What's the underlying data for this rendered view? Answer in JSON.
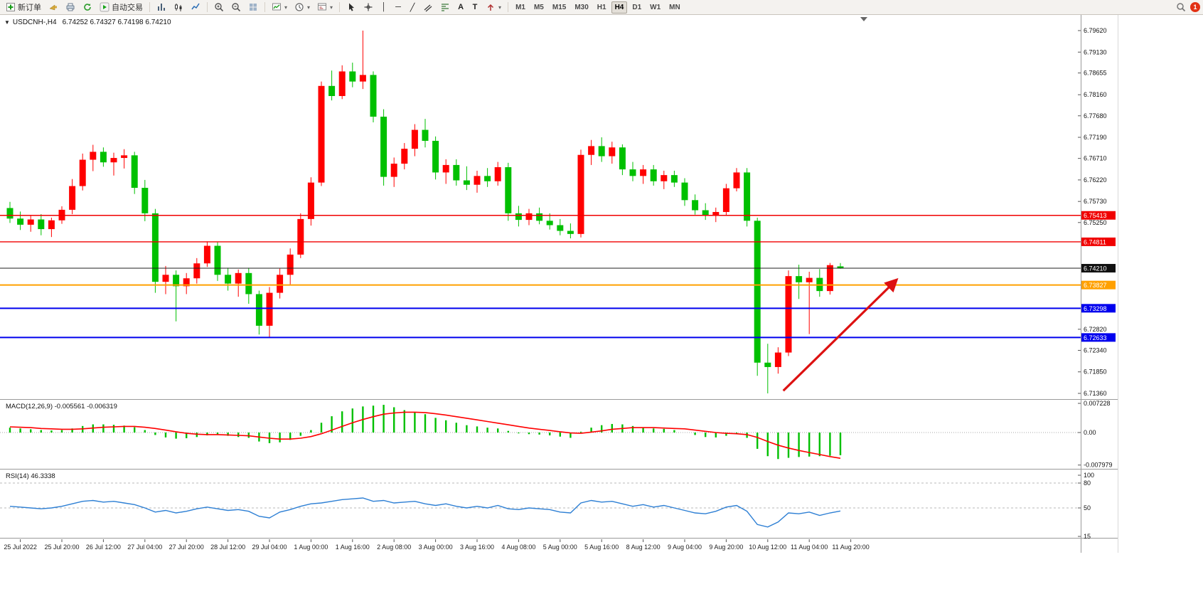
{
  "toolbar": {
    "active_timeframe": "H4",
    "items": [
      {
        "name": "new-order-button",
        "icon": "order",
        "label": "新订单"
      },
      {
        "name": "megaphone-icon",
        "icon": "megaphone"
      },
      {
        "name": "chart-print-icon",
        "icon": "printer"
      },
      {
        "name": "refresh-icon",
        "icon": "refresh"
      },
      {
        "name": "autotrade-button",
        "icon": "play",
        "label": "自动交易"
      },
      {
        "sep": true
      },
      {
        "name": "bar-chart-icon",
        "icon": "bars"
      },
      {
        "name": "candlestick-chart-icon",
        "icon": "candles"
      },
      {
        "name": "line-chart-icon",
        "icon": "linechart"
      },
      {
        "sep": true
      },
      {
        "name": "zoom-in-icon",
        "icon": "zoomin"
      },
      {
        "name": "zoom-out-icon",
        "icon": "zoomout"
      },
      {
        "name": "tile-windows-icon",
        "icon": "grid"
      },
      {
        "sep": true
      },
      {
        "name": "indicators-icon",
        "icon": "indicator",
        "dropdown": true
      },
      {
        "name": "periods-icon",
        "icon": "clock",
        "dropdown": true
      },
      {
        "name": "templates-icon",
        "icon": "template",
        "dropdown": true
      },
      {
        "sep": true
      },
      {
        "name": "cursor-icon",
        "icon": "cursor"
      },
      {
        "name": "crosshair-icon",
        "icon": "crosshair"
      },
      {
        "name": "vertical-line-icon",
        "glyph": "│"
      },
      {
        "name": "horizontal-line-icon",
        "glyph": "─"
      },
      {
        "name": "trendline-icon",
        "glyph": "╱"
      },
      {
        "name": "equidistant-channel-icon",
        "icon": "channel"
      },
      {
        "name": "fibonacci-icon",
        "icon": "fibo"
      },
      {
        "name": "text-icon",
        "glyph": "A"
      },
      {
        "name": "label-icon",
        "glyph": "T"
      },
      {
        "name": "arrows-icon",
        "icon": "arrowsym",
        "dropdown": true
      },
      {
        "sep": true
      },
      {
        "name": "timeframe-m1",
        "label": "M1",
        "tf": true
      },
      {
        "name": "timeframe-m5",
        "label": "M5",
        "tf": true
      },
      {
        "name": "timeframe-m15",
        "label": "M15",
        "tf": true
      },
      {
        "name": "timeframe-m30",
        "label": "M30",
        "tf": true
      },
      {
        "name": "timeframe-h1",
        "label": "H1",
        "tf": true
      },
      {
        "name": "timeframe-h4",
        "label": "H4",
        "tf": true
      },
      {
        "name": "timeframe-d1",
        "label": "D1",
        "tf": true
      },
      {
        "name": "timeframe-w1",
        "label": "W1",
        "tf": true
      },
      {
        "name": "timeframe-mn",
        "label": "MN",
        "tf": true
      }
    ],
    "right_items": [
      {
        "name": "search-icon",
        "icon": "search"
      },
      {
        "name": "notification-badge",
        "badge": "1"
      }
    ]
  },
  "chart": {
    "collapse_glyph": "▼",
    "title": "USDCNH-,H4",
    "ohlc": "6.74252 6.74327 6.74198 6.74210"
  },
  "indicators": {
    "macd_label": "MACD(12,26,9)",
    "macd_values": "-0.005561 -0.006319",
    "rsi_label": "RSI(14)",
    "rsi_value": "46.3338"
  },
  "price_scale": {
    "labels": [
      {
        "text": "6.79620",
        "value": 6.7962
      },
      {
        "text": "6.79130",
        "value": 6.7913
      },
      {
        "text": "6.78655",
        "value": 6.78655
      },
      {
        "text": "6.78160",
        "value": 6.7816
      },
      {
        "text": "6.77680",
        "value": 6.7768
      },
      {
        "text": "6.77190",
        "value": 6.7719
      },
      {
        "text": "6.76710",
        "value": 6.7671
      },
      {
        "text": "6.76220",
        "value": 6.7622
      },
      {
        "text": "6.75730",
        "value": 6.7573
      },
      {
        "text": "6.75250",
        "value": 6.7525
      },
      {
        "text": "6.72820",
        "value": 6.7282
      },
      {
        "text": "6.72340",
        "value": 6.7234
      },
      {
        "text": "6.71850",
        "value": 6.7185
      },
      {
        "text": "6.71360",
        "value": 6.7136
      }
    ]
  },
  "hlines": [
    {
      "label": "6.75413",
      "value": 6.75413,
      "color": "#f00000",
      "width": 1.4
    },
    {
      "label": "6.74811",
      "value": 6.74811,
      "color": "#f00000",
      "width": 1.4
    },
    {
      "label": "6.73827",
      "value": 6.73827,
      "color": "#ffa000",
      "width": 2
    },
    {
      "label": "6.73298",
      "value": 6.73298,
      "color": "#0000ee",
      "width": 2
    },
    {
      "label": "6.72633",
      "value": 6.72633,
      "color": "#0000ee",
      "width": 2
    }
  ],
  "current_price": {
    "label": "6.74210",
    "value": 6.7421,
    "color": "#111111"
  },
  "macd_scale": [
    {
      "text": "0.007228",
      "value": 0.007228
    },
    {
      "text": "0.00",
      "value": 0
    },
    {
      "text": "-0.007979",
      "value": -0.007979
    }
  ],
  "rsi_scale": [
    {
      "text": "100",
      "value": 100
    },
    {
      "text": "80",
      "value": 80
    },
    {
      "text": "50",
      "value": 50
    },
    {
      "text": "15",
      "value": 15
    }
  ],
  "rsi_levels": [
    80,
    50
  ],
  "time_axis": [
    {
      "text": "25 Jul 2022",
      "idx": 1
    },
    {
      "text": "25 Jul 20:00",
      "idx": 5
    },
    {
      "text": "26 Jul 12:00",
      "idx": 9
    },
    {
      "text": "27 Jul 04:00",
      "idx": 13
    },
    {
      "text": "27 Jul 20:00",
      "idx": 17
    },
    {
      "text": "28 Jul 12:00",
      "idx": 21
    },
    {
      "text": "29 Jul 04:00",
      "idx": 25
    },
    {
      "text": "1 Aug 00:00",
      "idx": 29
    },
    {
      "text": "1 Aug 16:00",
      "idx": 33
    },
    {
      "text": "2 Aug 08:00",
      "idx": 37
    },
    {
      "text": "3 Aug 00:00",
      "idx": 41
    },
    {
      "text": "3 Aug 16:00",
      "idx": 45
    },
    {
      "text": "4 Aug 08:00",
      "idx": 49
    },
    {
      "text": "5 Aug 00:00",
      "idx": 53
    },
    {
      "text": "5 Aug 16:00",
      "idx": 57
    },
    {
      "text": "8 Aug 12:00",
      "idx": 61
    },
    {
      "text": "9 Aug 04:00",
      "idx": 65
    },
    {
      "text": "9 Aug 20:00",
      "idx": 69
    },
    {
      "text": "10 Aug 12:00",
      "idx": 73
    },
    {
      "text": "11 Aug 04:00",
      "idx": 77
    },
    {
      "text": "11 Aug 20:00",
      "idx": 81
    }
  ],
  "annotations": {
    "arrow": {
      "from": {
        "bar": 74.5,
        "price": 6.7142
      },
      "to": {
        "bar": 85.3,
        "price": 6.7392
      },
      "color": "#dd1111",
      "width": 3.2
    }
  },
  "chart_data": {
    "type": "candlestick",
    "symbol": "USDCNH-",
    "timeframe": "H4",
    "title": "USDCNH- H4 with MACD(12,26,9) and RSI(14)",
    "price_range": [
      6.7136,
      6.7962
    ],
    "up_color": "#ff0000",
    "down_color": "#00c000",
    "candles": [
      [
        6.7558,
        6.7572,
        6.7524,
        6.7534
      ],
      [
        6.7534,
        6.755,
        6.7508,
        6.752
      ],
      [
        6.752,
        6.7542,
        6.7504,
        6.7532
      ],
      [
        6.7532,
        6.7544,
        6.7496,
        6.751
      ],
      [
        6.751,
        6.7536,
        6.7492,
        6.753
      ],
      [
        6.753,
        6.7562,
        6.7522,
        6.7554
      ],
      [
        6.7554,
        6.7624,
        6.7544,
        6.7608
      ],
      [
        6.7608,
        6.7682,
        6.7598,
        6.7668
      ],
      [
        6.7668,
        6.7702,
        6.7642,
        6.7686
      ],
      [
        6.7686,
        6.7696,
        6.7652,
        6.7662
      ],
      [
        6.7662,
        6.7684,
        6.7632,
        6.7672
      ],
      [
        6.7672,
        6.7692,
        6.7648,
        6.7678
      ],
      [
        6.7678,
        6.7686,
        6.759,
        6.7604
      ],
      [
        6.7604,
        6.7622,
        6.7528,
        6.7546
      ],
      [
        6.7546,
        6.7556,
        6.7365,
        6.739
      ],
      [
        6.739,
        6.7426,
        6.7362,
        6.7406
      ],
      [
        6.7406,
        6.7416,
        6.73,
        6.738
      ],
      [
        6.738,
        6.741,
        6.7362,
        6.7398
      ],
      [
        6.7398,
        6.7444,
        6.7386,
        6.7432
      ],
      [
        6.7432,
        6.7482,
        6.7424,
        6.7472
      ],
      [
        6.7472,
        6.748,
        6.7392,
        6.7406
      ],
      [
        6.7406,
        6.7422,
        6.737,
        6.7386
      ],
      [
        6.7386,
        6.7418,
        6.7356,
        6.741
      ],
      [
        6.741,
        6.7422,
        6.734,
        6.7362
      ],
      [
        6.7362,
        6.737,
        6.727,
        6.729
      ],
      [
        6.729,
        6.7378,
        6.7264,
        6.7365
      ],
      [
        6.7365,
        6.742,
        6.7352,
        6.7406
      ],
      [
        6.7406,
        6.7466,
        6.7382,
        6.7452
      ],
      [
        6.7452,
        6.7546,
        6.7444,
        6.7533
      ],
      [
        6.7533,
        6.7628,
        6.7518,
        6.7616
      ],
      [
        6.7616,
        6.7846,
        6.7608,
        6.7836
      ],
      [
        6.7836,
        6.7871,
        6.7803,
        6.7813
      ],
      [
        6.7813,
        6.7883,
        6.7806,
        6.7869
      ],
      [
        6.7869,
        6.7889,
        6.7833,
        6.7846
      ],
      [
        6.7846,
        6.7962,
        6.7829,
        6.7861
      ],
      [
        6.7861,
        6.7869,
        6.7753,
        6.7766
      ],
      [
        6.7766,
        6.7783,
        6.7609,
        6.7629
      ],
      [
        6.7629,
        6.7673,
        6.7606,
        6.7659
      ],
      [
        6.7659,
        6.7706,
        6.7646,
        6.7693
      ],
      [
        6.7693,
        6.7749,
        6.7676,
        6.7736
      ],
      [
        6.7736,
        6.7761,
        6.7696,
        6.7711
      ],
      [
        6.7711,
        6.7721,
        6.7623,
        6.7639
      ],
      [
        6.7639,
        6.7669,
        6.7613,
        6.7656
      ],
      [
        6.7656,
        6.7669,
        6.7609,
        6.7621
      ],
      [
        6.7621,
        6.7653,
        6.7599,
        6.7611
      ],
      [
        6.7611,
        6.7643,
        6.7593,
        6.7631
      ],
      [
        6.7631,
        6.7649,
        6.7606,
        6.7619
      ],
      [
        6.7619,
        6.7663,
        6.7609,
        6.7651
      ],
      [
        6.7651,
        6.7661,
        6.7529,
        6.7546
      ],
      [
        6.7546,
        6.7563,
        6.7516,
        6.7531
      ],
      [
        6.7531,
        6.7556,
        6.7519,
        6.7546
      ],
      [
        6.7546,
        6.7559,
        6.7521,
        6.7529
      ],
      [
        6.7529,
        6.7546,
        6.7509,
        6.7519
      ],
      [
        6.7519,
        6.7533,
        6.7496,
        6.7506
      ],
      [
        6.7506,
        6.7523,
        6.7489,
        6.7499
      ],
      [
        6.7499,
        6.7691,
        6.7491,
        6.7679
      ],
      [
        6.7679,
        6.7713,
        6.7656,
        6.7699
      ],
      [
        6.7699,
        6.7719,
        6.7663,
        6.7676
      ],
      [
        6.7676,
        6.7709,
        6.7659,
        6.7696
      ],
      [
        6.7696,
        6.7703,
        6.7633,
        6.7646
      ],
      [
        6.7646,
        6.7663,
        6.7619,
        6.7631
      ],
      [
        6.7631,
        6.7656,
        6.7613,
        6.7646
      ],
      [
        6.7646,
        6.7656,
        6.7609,
        6.7619
      ],
      [
        6.7619,
        6.7643,
        6.7601,
        6.7633
      ],
      [
        6.7633,
        6.7643,
        6.7606,
        6.7616
      ],
      [
        6.7616,
        6.7626,
        6.7563,
        6.7576
      ],
      [
        6.7576,
        6.7589,
        6.7543,
        6.7553
      ],
      [
        6.7553,
        6.7569,
        6.7531,
        6.7541
      ],
      [
        6.7541,
        6.7559,
        6.7526,
        6.7549
      ],
      [
        6.7549,
        6.7613,
        6.7541,
        6.7603
      ],
      [
        6.7603,
        6.7649,
        6.7596,
        6.7639
      ],
      [
        6.7639,
        6.7649,
        6.7516,
        6.7529
      ],
      [
        6.7529,
        6.7536,
        6.7176,
        6.7206
      ],
      [
        6.7206,
        6.7249,
        6.7136,
        6.7196
      ],
      [
        6.7196,
        6.7241,
        6.7181,
        6.7229
      ],
      [
        6.7229,
        6.7416,
        6.7221,
        6.7403
      ],
      [
        6.7403,
        6.7429,
        6.7351,
        6.7389
      ],
      [
        6.7389,
        6.7413,
        6.7271,
        6.7399
      ],
      [
        6.7399,
        6.7419,
        6.7356,
        6.7369
      ],
      [
        6.7369,
        6.7433,
        6.7361,
        6.7428
      ],
      [
        6.74252,
        6.74327,
        6.74198,
        6.7421
      ]
    ],
    "macd": {
      "histogram": [
        0.0012,
        0.001,
        0.0008,
        0.0006,
        0.0005,
        0.0006,
        0.001,
        0.0016,
        0.002,
        0.002,
        0.0019,
        0.0017,
        0.0013,
        0.0006,
        -0.0006,
        -0.0012,
        -0.0015,
        -0.0014,
        -0.0011,
        -0.0007,
        -0.0005,
        -0.0008,
        -0.0011,
        -0.0013,
        -0.0022,
        -0.0026,
        -0.0024,
        -0.0018,
        -0.0008,
        0.0006,
        0.0024,
        0.004,
        0.0052,
        0.0059,
        0.0064,
        0.0066,
        0.0068,
        0.0062,
        0.0055,
        0.005,
        0.0045,
        0.0036,
        0.003,
        0.0024,
        0.0018,
        0.0015,
        0.0012,
        0.001,
        0.0004,
        -0.0002,
        -0.0004,
        -0.0005,
        -0.0007,
        -0.001,
        -0.0013,
        0.0002,
        0.0012,
        0.0018,
        0.0021,
        0.002,
        0.0016,
        0.0013,
        0.001,
        0.0009,
        0.0006,
        0.0,
        -0.0006,
        -0.0011,
        -0.0012,
        -0.0008,
        -0.0003,
        -0.0013,
        -0.004,
        -0.0058,
        -0.0065,
        -0.0062,
        -0.006,
        -0.0059,
        -0.0058,
        -0.0057,
        -0.005561
      ],
      "signal": [
        0.0014,
        0.0013,
        0.0012,
        0.001,
        0.0009,
        0.0008,
        0.0008,
        0.0009,
        0.0011,
        0.0013,
        0.0014,
        0.0015,
        0.0015,
        0.0013,
        0.001,
        0.0006,
        0.0002,
        -0.0002,
        -0.0004,
        -0.0005,
        -0.0005,
        -0.0006,
        -0.0007,
        -0.0008,
        -0.0011,
        -0.0014,
        -0.0016,
        -0.0016,
        -0.0014,
        -0.001,
        -0.0003,
        0.0006,
        0.0015,
        0.0024,
        0.0032,
        0.0039,
        0.0045,
        0.0048,
        0.005,
        0.005,
        0.0049,
        0.0046,
        0.0043,
        0.0039,
        0.0035,
        0.0031,
        0.0027,
        0.0023,
        0.0019,
        0.0015,
        0.0011,
        0.0008,
        0.0005,
        0.0002,
        -0.0001,
        -0.0002,
        0.0001,
        0.0004,
        0.0008,
        0.001,
        0.0012,
        0.0012,
        0.0012,
        0.0011,
        0.001,
        0.0009,
        0.0006,
        0.0003,
        0.0,
        -0.0002,
        -0.0003,
        -0.0005,
        -0.0012,
        -0.0022,
        -0.0031,
        -0.0038,
        -0.0044,
        -0.0049,
        -0.0054,
        -0.0059,
        -0.006319
      ],
      "hist_color": "#00c000",
      "signal_color": "#ff0000",
      "range": [
        -0.007979,
        0.007228
      ]
    },
    "rsi": {
      "values": [
        52,
        51,
        50,
        49,
        50,
        52,
        55,
        58,
        59,
        57,
        58,
        56,
        54,
        50,
        45,
        47,
        44,
        46,
        49,
        51,
        49,
        47,
        48,
        46,
        40,
        38,
        45,
        48,
        52,
        55,
        56,
        58,
        60,
        61,
        62,
        58,
        59,
        56,
        57,
        58,
        55,
        53,
        55,
        52,
        50,
        52,
        50,
        53,
        49,
        48,
        50,
        49,
        48,
        45,
        44,
        56,
        59,
        57,
        58,
        55,
        52,
        54,
        51,
        53,
        50,
        47,
        44,
        43,
        46,
        51,
        53,
        46,
        30,
        27,
        33,
        44,
        43,
        45,
        41,
        44,
        46.33
      ],
      "color": "#2d7fd4",
      "range": [
        0,
        100
      ]
    }
  }
}
